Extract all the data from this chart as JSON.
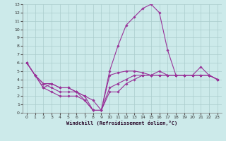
{
  "bg_color": "#cceaea",
  "grid_color": "#aacccc",
  "line_color": "#993399",
  "xlabel": "Windchill (Refroidissement éolien,°C)",
  "xlim": [
    -0.5,
    23.5
  ],
  "ylim": [
    0,
    13
  ],
  "xticks": [
    0,
    1,
    2,
    3,
    4,
    5,
    6,
    7,
    8,
    9,
    10,
    11,
    12,
    13,
    14,
    15,
    16,
    17,
    18,
    19,
    20,
    21,
    22,
    23
  ],
  "yticks": [
    0,
    1,
    2,
    3,
    4,
    5,
    6,
    7,
    8,
    9,
    10,
    11,
    12,
    13
  ],
  "line1_x": [
    0,
    1,
    2,
    3,
    4,
    5,
    6,
    7,
    8,
    9,
    10,
    11,
    12,
    13,
    14,
    15,
    16,
    17,
    18,
    19,
    20,
    21,
    22,
    23
  ],
  "line1_y": [
    6.0,
    4.5,
    3.5,
    3.0,
    2.5,
    2.5,
    2.5,
    1.5,
    0.3,
    0.3,
    4.5,
    4.8,
    5.0,
    5.0,
    4.8,
    4.5,
    4.5,
    4.5,
    4.5,
    4.5,
    4.5,
    4.5,
    4.5,
    4.0
  ],
  "line2_x": [
    0,
    1,
    2,
    3,
    4,
    5,
    6,
    7,
    8,
    9,
    10,
    11,
    12,
    13,
    14,
    15,
    16,
    17,
    18,
    19,
    20,
    21,
    22,
    23
  ],
  "line2_y": [
    6.0,
    4.5,
    3.5,
    3.5,
    3.0,
    3.0,
    2.5,
    2.0,
    1.5,
    0.3,
    5.0,
    8.0,
    10.5,
    11.5,
    12.5,
    13.0,
    12.0,
    7.5,
    4.5,
    4.5,
    4.5,
    5.5,
    4.5,
    4.0
  ],
  "line3_x": [
    0,
    1,
    2,
    3,
    4,
    5,
    6,
    7,
    8,
    9,
    10,
    11,
    12,
    13,
    14,
    15,
    16,
    17,
    18,
    19,
    20,
    21,
    22,
    23
  ],
  "line3_y": [
    6.0,
    4.5,
    3.0,
    2.5,
    2.0,
    2.0,
    2.0,
    1.5,
    0.3,
    0.3,
    2.5,
    2.5,
    3.5,
    4.0,
    4.5,
    4.5,
    5.0,
    4.5,
    4.5,
    4.5,
    4.5,
    4.5,
    4.5,
    4.0
  ],
  "line4_x": [
    0,
    1,
    2,
    3,
    4,
    5,
    6,
    7,
    8,
    9,
    10,
    11,
    12,
    13,
    14,
    15,
    16,
    17,
    18,
    19,
    20,
    21,
    22,
    23
  ],
  "line4_y": [
    6.0,
    4.5,
    3.0,
    3.5,
    3.0,
    3.0,
    2.5,
    2.0,
    0.3,
    0.3,
    3.0,
    3.5,
    4.0,
    4.5,
    4.5,
    4.5,
    4.5,
    4.5,
    4.5,
    4.5,
    4.5,
    4.5,
    4.5,
    4.0
  ]
}
